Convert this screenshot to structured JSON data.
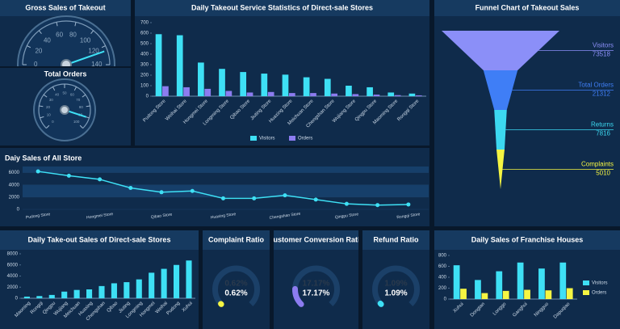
{
  "chart_data": [
    {
      "type": "gauge",
      "title": "Gross Sales of Takeout",
      "value": 125,
      "ylim": [
        0,
        140
      ],
      "yticks": [
        0,
        20,
        40,
        60,
        80,
        100,
        120,
        140
      ]
    },
    {
      "type": "gauge",
      "title": "Total Orders",
      "value": 90,
      "ylim": [
        0,
        100
      ],
      "yticks": [
        0,
        10,
        20,
        30,
        40,
        50,
        60,
        70,
        80,
        90,
        100
      ]
    },
    {
      "type": "bar",
      "title": "Daily Takeout Service Statistics of Direct-sale Stores",
      "categories": [
        "Pudong Store",
        "Weihai Store",
        "Hongmei Store",
        "Longming Store",
        "Qibao Store",
        "Jiuting Store",
        "Huaxing Store",
        "Meichuan Store",
        "Chengshan Store",
        "Wujiang Store",
        "Qingpu Store",
        "Maoming Store",
        "Rongqi Store"
      ],
      "series": [
        {
          "name": "Visitors",
          "color": "#3ee0f5",
          "values": [
            590,
            580,
            320,
            260,
            230,
            215,
            205,
            180,
            165,
            100,
            85,
            35,
            25
          ]
        },
        {
          "name": "Orders",
          "color": "#8c7cf0",
          "values": [
            95,
            85,
            70,
            50,
            35,
            40,
            30,
            30,
            25,
            20,
            15,
            10,
            8
          ]
        }
      ],
      "ylim": [
        0,
        700
      ],
      "yticks": [
        0,
        100,
        200,
        300,
        400,
        500,
        600,
        700
      ],
      "legend": "bottom"
    },
    {
      "type": "funnel",
      "title": "Funnel Chart of Takeout Sales",
      "categories": [
        "Visitors",
        "Total Orders",
        "Returns",
        "Complaints"
      ],
      "values": [
        73518,
        21312,
        7816,
        5010
      ],
      "colors": [
        "#8b8ff8",
        "#3f7ef6",
        "#3cd8f0",
        "#f5f542"
      ]
    },
    {
      "type": "line",
      "title": "Daiy Sales of All Store",
      "categories": [
        "Pudong Store",
        null,
        "Hongmei Store",
        null,
        "Qibao Store",
        null,
        "Huaxing Store",
        null,
        "Chengshan Store",
        null,
        "Qingpu Store",
        null,
        "Rongqi Store"
      ],
      "values": [
        6200,
        5500,
        4900,
        3500,
        2800,
        3000,
        1800,
        1800,
        2300,
        1600,
        900,
        700,
        800
      ],
      "color": "#3ee0f5",
      "ylim": [
        0,
        7000
      ],
      "yticks": [
        0,
        2000,
        4000,
        6000
      ]
    },
    {
      "type": "bar",
      "title": "Daily Take-out Sales of Direct-sale Stores",
      "categories": [
        "Maoming",
        "Rongqi",
        "Qingpu",
        "Wujiang",
        "Meichuan",
        "Huaxing",
        "Chengshan",
        "Qibao",
        "Jiuting",
        "Longming",
        "Hongmei",
        "Weihai",
        "Pudong",
        "Xuhui"
      ],
      "values": [
        300,
        400,
        600,
        1200,
        1500,
        1600,
        2200,
        2700,
        2900,
        3400,
        4600,
        5300,
        6000,
        6800
      ],
      "color": "#3ee0f5",
      "ylim": [
        0,
        8000
      ],
      "yticks": [
        0,
        2000,
        4000,
        6000,
        8000
      ]
    },
    {
      "type": "ratio",
      "title": "Complaint Ratio",
      "value": 0.62,
      "value_label": "0.62%",
      "color": "#f5f542",
      "ylim": [
        0,
        100
      ]
    },
    {
      "type": "ratio",
      "title": "Customer Conversion Ratio",
      "value": 17.17,
      "value_label": "17.17%",
      "color": "#8c7cf0",
      "ylim": [
        0,
        100
      ]
    },
    {
      "type": "ratio",
      "title": "Refund Ratio",
      "value": 1.09,
      "value_label": "1.09%",
      "color": "#3ee0f5",
      "ylim": [
        0,
        100
      ]
    },
    {
      "type": "bar",
      "title": "Daily Sales of Franchise Houses",
      "categories": [
        "Xuhui",
        "Dongtan",
        "Longgo",
        "Ganghui",
        "Ningguo",
        "Dapuqiao"
      ],
      "series": [
        {
          "name": "Visitors",
          "color": "#3ee0f5",
          "values": [
            620,
            350,
            510,
            670,
            560,
            670
          ]
        },
        {
          "name": "Orders",
          "color": "#f5f542",
          "values": [
            190,
            110,
            150,
            170,
            160,
            200
          ]
        }
      ],
      "ylim": [
        0,
        800
      ],
      "yticks": [
        0,
        200,
        400,
        600,
        800
      ],
      "legend": "right"
    }
  ]
}
